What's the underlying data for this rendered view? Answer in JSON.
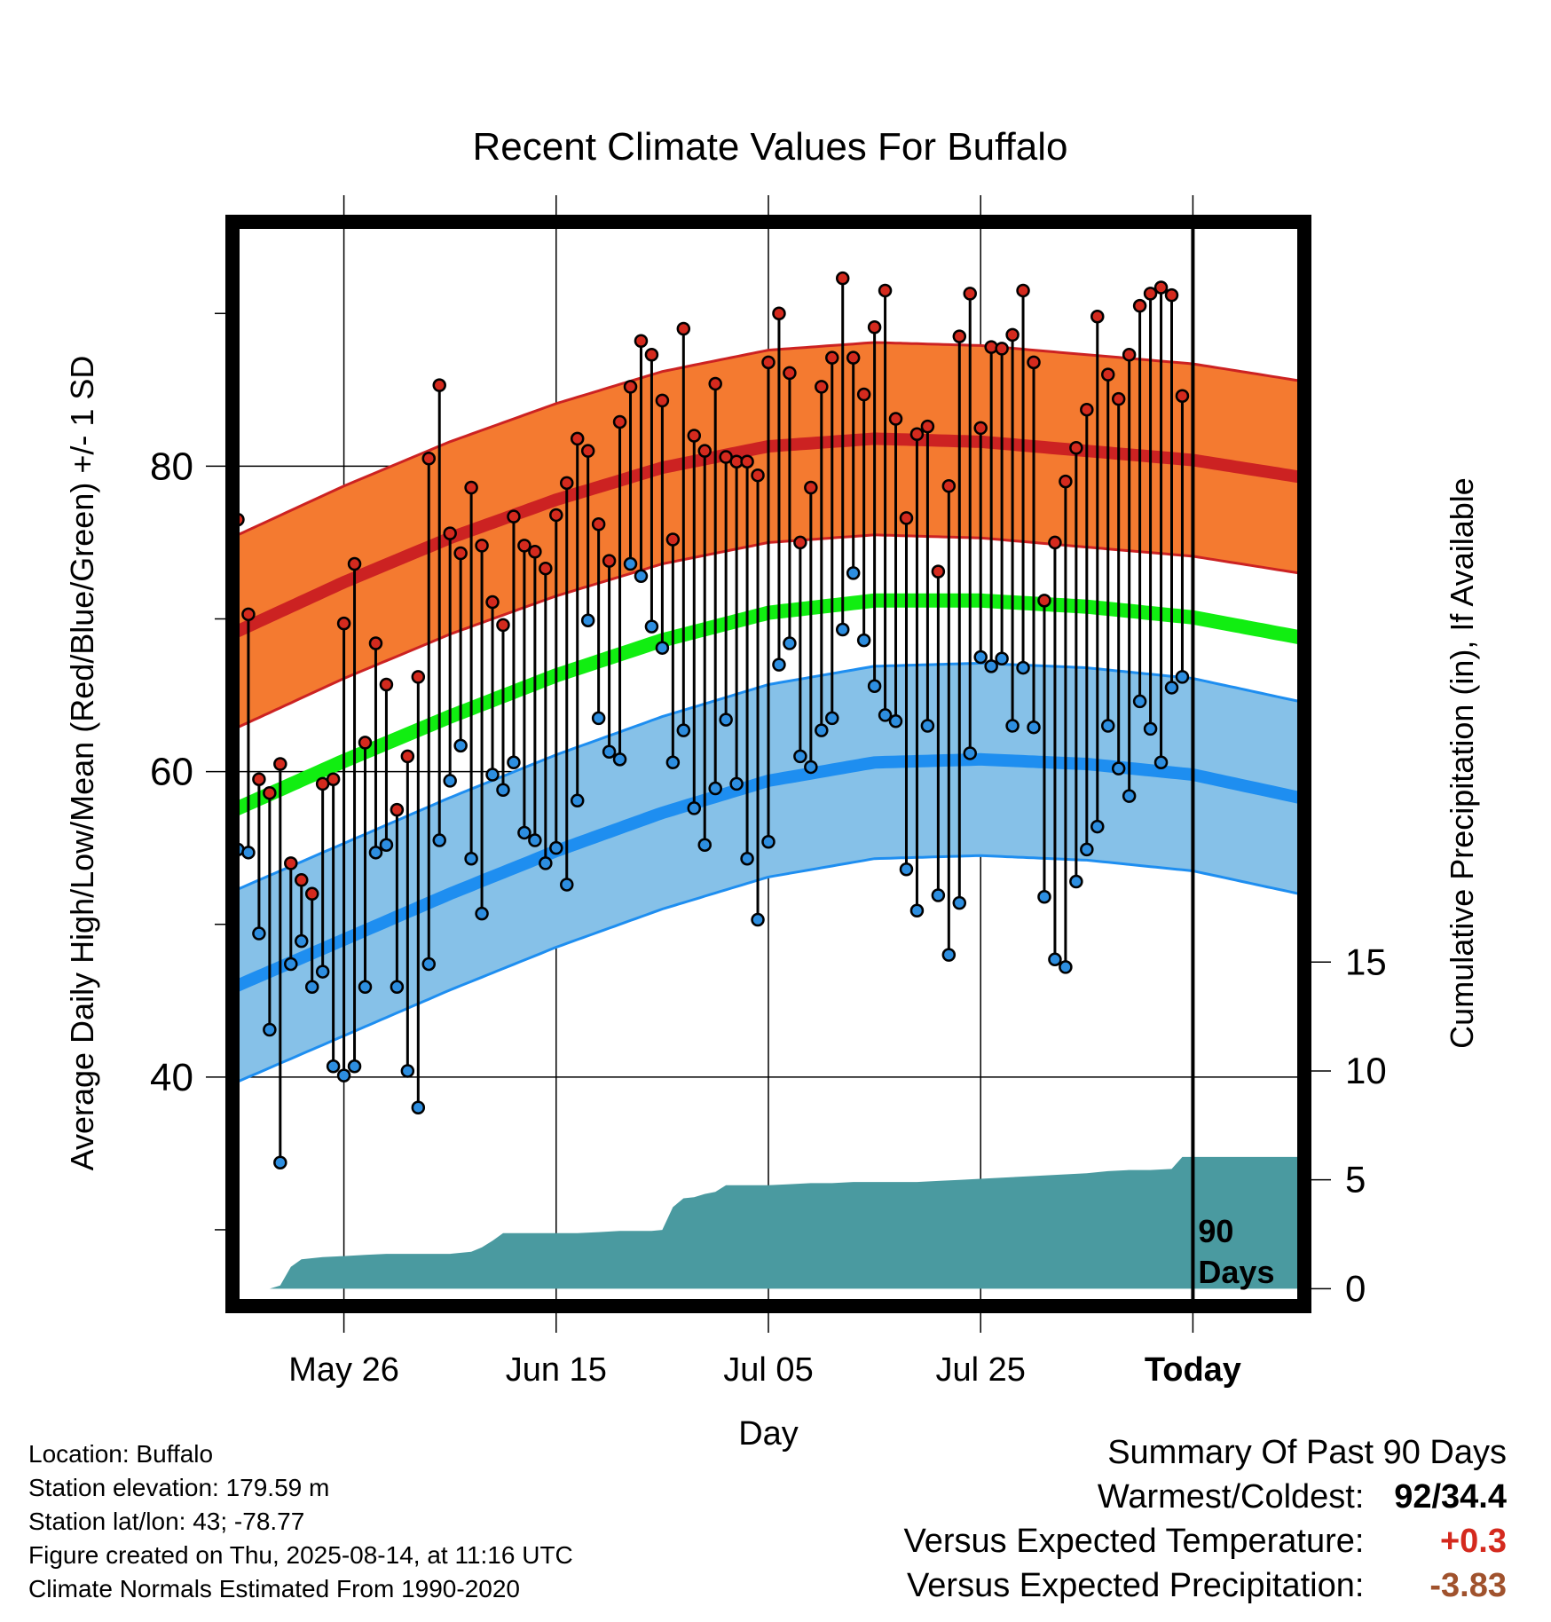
{
  "chart_data": {
    "type": "line",
    "title": "Recent Climate Values For Buffalo",
    "xlabel": "Day",
    "ylabel": "Average Daily High/Low/Mean (Red/Blue/Green) +/- 1 SD",
    "ylabel_right": "Cumulative Precipitation (in), If Available",
    "ylim": [
      25,
      96
    ],
    "y2lim": [
      -0.8,
      49
    ],
    "yticks": [
      40,
      60,
      80
    ],
    "y2ticks": [
      0,
      5,
      10,
      15
    ],
    "xlim": [
      -0.5,
      100.5
    ],
    "x_ticks": [
      {
        "day": 10,
        "label": "May 26"
      },
      {
        "day": 30,
        "label": "Jun 15"
      },
      {
        "day": 50,
        "label": "Jul 05"
      },
      {
        "day": 70,
        "label": "Jul 25"
      },
      {
        "day": 90,
        "label": "Today"
      }
    ],
    "today_label": [
      "90",
      "Days"
    ],
    "colors": {
      "high": "#cc2222",
      "high_band": "#f47a30",
      "low": "#1e8ef0",
      "low_band": "#86c1e8",
      "mean": "#11ee11",
      "precip": "#4a9aa0",
      "high_point": "#d42a1e",
      "low_point": "#2d8ee0"
    },
    "normal_high": {
      "days": [
        0,
        10,
        20,
        30,
        40,
        50,
        60,
        70,
        80,
        90,
        100
      ],
      "values": [
        69.2,
        72.4,
        75.3,
        77.8,
        79.9,
        81.3,
        81.8,
        81.6,
        81.0,
        80.4,
        79.3
      ]
    },
    "normal_high_sd": 6.3,
    "normal_low": {
      "days": [
        0,
        10,
        20,
        30,
        40,
        50,
        60,
        70,
        80,
        90,
        100
      ],
      "values": [
        46.0,
        49.0,
        52.0,
        54.8,
        57.3,
        59.4,
        60.6,
        60.8,
        60.5,
        59.8,
        58.3
      ]
    },
    "normal_low_sd": 6.3,
    "normal_mean": {
      "days": [
        0,
        10,
        20,
        30,
        40,
        50,
        60,
        70,
        80,
        90,
        100
      ],
      "values": [
        57.6,
        60.7,
        63.6,
        66.3,
        68.6,
        70.4,
        71.2,
        71.2,
        70.8,
        70.1,
        68.8
      ]
    },
    "daily_highs": [
      76.5,
      70.3,
      59.5,
      58.6,
      60.5,
      54.0,
      52.9,
      52.0,
      59.2,
      59.5,
      69.7,
      73.6,
      61.9,
      68.4,
      65.7,
      57.5,
      61.0,
      66.2,
      80.5,
      85.3,
      75.6,
      74.3,
      78.6,
      74.8,
      71.1,
      69.6,
      76.7,
      74.8,
      74.4,
      73.3,
      76.8,
      78.9,
      81.8,
      81.0,
      76.2,
      73.8,
      82.9,
      85.2,
      88.2,
      87.3,
      84.3,
      75.2,
      89.0,
      82.0,
      81.0,
      85.4,
      80.6,
      80.3,
      80.3,
      79.4,
      86.8,
      90.0,
      86.1,
      75.0,
      78.6,
      85.2,
      87.1,
      92.3,
      87.1,
      84.7,
      89.1,
      91.5,
      83.1,
      76.6,
      82.1,
      82.6,
      73.1,
      78.7,
      88.5,
      91.3,
      82.5,
      87.8,
      87.7,
      88.6,
      91.5,
      86.8,
      71.2,
      75.0,
      79.0,
      81.2,
      83.7,
      89.8,
      86.0,
      84.4,
      87.3,
      90.5,
      91.3,
      91.7,
      91.2,
      84.6
    ],
    "daily_lows": [
      54.9,
      54.7,
      49.4,
      43.1,
      34.4,
      47.4,
      48.9,
      45.9,
      46.9,
      40.7,
      40.1,
      40.7,
      45.9,
      54.7,
      55.2,
      45.9,
      40.4,
      38.0,
      47.4,
      55.5,
      59.4,
      61.7,
      54.3,
      50.7,
      59.8,
      58.8,
      60.6,
      56.0,
      55.5,
      54.0,
      55.0,
      52.6,
      58.1,
      69.9,
      63.5,
      61.3,
      60.8,
      73.6,
      72.8,
      69.5,
      68.1,
      60.6,
      62.7,
      57.6,
      55.2,
      58.9,
      63.4,
      59.2,
      54.3,
      50.3,
      55.4,
      67.0,
      68.4,
      61.0,
      60.3,
      62.7,
      63.5,
      69.3,
      73.0,
      68.6,
      65.6,
      63.7,
      63.3,
      53.6,
      50.9,
      63.0,
      51.9,
      48.0,
      51.4,
      61.2,
      67.5,
      66.9,
      67.4,
      63.0,
      66.8,
      62.9,
      51.8,
      47.7,
      47.2,
      52.8,
      54.9,
      56.4,
      63.0,
      60.2,
      58.4,
      64.6,
      62.8,
      60.6,
      65.5,
      66.2
    ],
    "cumulative_precip": {
      "days": [
        0,
        1,
        2,
        3,
        4,
        5,
        6,
        7,
        8,
        10,
        12,
        14,
        16,
        18,
        20,
        22,
        23,
        24,
        25,
        26,
        27,
        28,
        30,
        32,
        34,
        36,
        38,
        39,
        40,
        41,
        42,
        43,
        44,
        45,
        46,
        47,
        48,
        50,
        52,
        54,
        56,
        58,
        60,
        62,
        64,
        66,
        68,
        70,
        72,
        74,
        76,
        78,
        80,
        82,
        84,
        86,
        88,
        89,
        90,
        91,
        92,
        93,
        100
      ],
      "values": [
        0,
        0,
        0,
        0,
        0.15,
        1.0,
        1.35,
        1.4,
        1.45,
        1.5,
        1.55,
        1.6,
        1.6,
        1.6,
        1.6,
        1.7,
        1.9,
        2.2,
        2.55,
        2.55,
        2.55,
        2.55,
        2.55,
        2.55,
        2.6,
        2.65,
        2.65,
        2.65,
        2.7,
        3.75,
        4.15,
        4.2,
        4.35,
        4.45,
        4.75,
        4.75,
        4.75,
        4.75,
        4.8,
        4.85,
        4.85,
        4.9,
        4.9,
        4.9,
        4.9,
        4.95,
        5.0,
        5.05,
        5.1,
        5.15,
        5.2,
        5.25,
        5.3,
        5.4,
        5.45,
        5.45,
        5.5,
        6.05,
        6.05,
        6.05,
        6.05,
        6.05,
        6.05
      ]
    }
  },
  "info": {
    "location": "Location: Buffalo",
    "elevation": "Station elevation: 179.59 m",
    "latlon": "Station lat/lon: 43; -78.77",
    "created": "Figure created on Thu, 2025-08-14, at 11:16 UTC",
    "normals": "Climate Normals Estimated From 1990-2020"
  },
  "summary": {
    "heading": "Summary Of Past 90 Days",
    "warm_cold_label": "Warmest/Coldest:",
    "warm_cold_value": "92/34.4",
    "temp_label": "Versus Expected Temperature:",
    "temp_value": "+0.3",
    "temp_color": "#d42a1e",
    "precip_label": "Versus Expected Precipitation:",
    "precip_value": "-3.83",
    "precip_color": "#a0522d"
  }
}
